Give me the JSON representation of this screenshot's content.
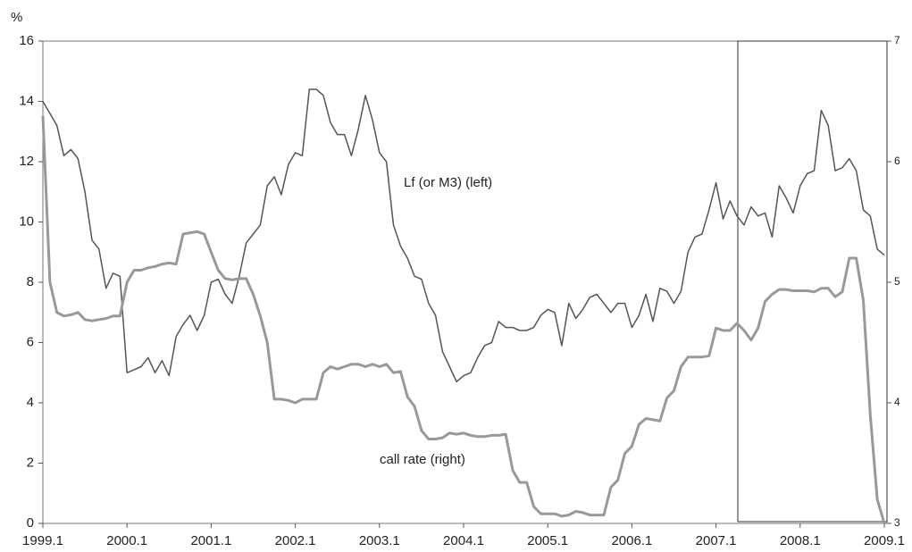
{
  "chart_data": {
    "type": "line",
    "y_label": "%",
    "categories": [
      "1999.1",
      null,
      null,
      null,
      null,
      null,
      null,
      null,
      null,
      null,
      null,
      null,
      "2000.1",
      null,
      null,
      null,
      null,
      null,
      null,
      null,
      null,
      null,
      null,
      null,
      "2001.1",
      null,
      null,
      null,
      null,
      null,
      null,
      null,
      null,
      null,
      null,
      null,
      "2002.1",
      null,
      null,
      null,
      null,
      null,
      null,
      null,
      null,
      null,
      null,
      null,
      "2003.1",
      null,
      null,
      null,
      null,
      null,
      null,
      null,
      null,
      null,
      null,
      null,
      "2004.1",
      null,
      null,
      null,
      null,
      null,
      null,
      null,
      null,
      null,
      null,
      null,
      "2005.1",
      null,
      null,
      null,
      null,
      null,
      null,
      null,
      null,
      null,
      null,
      null,
      "2006.1",
      null,
      null,
      null,
      null,
      null,
      null,
      null,
      null,
      null,
      null,
      null,
      "2007.1",
      null,
      null,
      null,
      null,
      null,
      null,
      null,
      null,
      null,
      null,
      null,
      "2008.1",
      null,
      null,
      null,
      null,
      null,
      null,
      null,
      null,
      null,
      null,
      null,
      "2009.1"
    ],
    "series": [
      {
        "name": "Lf (or M3) (left)",
        "color": "#555555",
        "axis": "y",
        "values": [
          14.0,
          13.6,
          13.2,
          12.2,
          12.4,
          12.1,
          11.0,
          9.4,
          9.1,
          7.8,
          8.3,
          8.2,
          5.0,
          5.1,
          5.2,
          5.5,
          5.0,
          5.4,
          4.9,
          6.2,
          6.6,
          6.9,
          6.4,
          6.9,
          8.0,
          8.1,
          7.6,
          7.3,
          8.2,
          9.3,
          9.6,
          9.9,
          11.2,
          11.5,
          10.9,
          11.9,
          12.3,
          12.2,
          14.4,
          14.4,
          14.2,
          13.3,
          12.9,
          12.9,
          12.2,
          13.1,
          14.2,
          13.4,
          12.3,
          12.0,
          9.9,
          9.2,
          8.8,
          8.2,
          8.1,
          7.3,
          6.9,
          5.7,
          5.2,
          4.7,
          4.9,
          5.0,
          5.5,
          5.9,
          6.0,
          6.7,
          6.5,
          6.5,
          6.4,
          6.4,
          6.5,
          6.9,
          7.1,
          7.0,
          5.9,
          7.3,
          6.8,
          7.1,
          7.5,
          7.6,
          7.3,
          7.0,
          7.3,
          7.3,
          6.5,
          6.9,
          7.6,
          6.7,
          7.8,
          7.7,
          7.3,
          7.7,
          9.0,
          9.5,
          9.6,
          10.4,
          11.3,
          10.1,
          10.7,
          10.2,
          9.9,
          10.5,
          10.2,
          10.3,
          9.5,
          11.2,
          10.8,
          10.3,
          11.2,
          11.6,
          11.7,
          13.7,
          13.2,
          11.7,
          11.8,
          12.1,
          11.7,
          10.4,
          10.2,
          9.1,
          8.9
        ]
      },
      {
        "name": "call rate (right)",
        "color": "#999999",
        "axis": "y2",
        "values": [
          6.38,
          5.0,
          4.75,
          4.72,
          4.73,
          4.75,
          4.69,
          4.68,
          4.69,
          4.7,
          4.72,
          4.72,
          5.0,
          5.1,
          5.1,
          5.12,
          5.13,
          5.15,
          5.16,
          5.15,
          5.4,
          5.41,
          5.42,
          5.4,
          5.25,
          5.1,
          5.03,
          5.02,
          5.03,
          5.03,
          4.9,
          4.72,
          4.5,
          4.03,
          4.03,
          4.02,
          4.0,
          4.03,
          4.03,
          4.03,
          4.25,
          4.3,
          4.28,
          4.3,
          4.32,
          4.32,
          4.3,
          4.32,
          4.3,
          4.32,
          4.25,
          4.26,
          4.05,
          3.97,
          3.77,
          3.7,
          3.7,
          3.71,
          3.75,
          3.74,
          3.75,
          3.73,
          3.72,
          3.72,
          3.73,
          3.73,
          3.74,
          3.44,
          3.34,
          3.34,
          3.14,
          3.08,
          3.08,
          3.08,
          3.06,
          3.07,
          3.1,
          3.09,
          3.07,
          3.07,
          3.07,
          3.3,
          3.36,
          3.58,
          3.64,
          3.82,
          3.87,
          3.86,
          3.85,
          4.04,
          4.1,
          4.3,
          4.38,
          4.38,
          4.38,
          4.39,
          4.62,
          4.6,
          4.6,
          4.66,
          4.6,
          4.52,
          4.62,
          4.84,
          4.9,
          4.94,
          4.94,
          4.93,
          4.93,
          4.93,
          4.92,
          4.95,
          4.95,
          4.88,
          4.92,
          5.2,
          5.2,
          4.85,
          3.9,
          3.2,
          3.0
        ]
      }
    ],
    "ylim": [
      0,
      16
    ],
    "yticks": [
      0,
      2,
      4,
      6,
      8,
      10,
      12,
      14,
      16
    ],
    "y2lim": [
      3,
      7
    ],
    "y2ticks": [
      3,
      4,
      5,
      6,
      7
    ]
  }
}
